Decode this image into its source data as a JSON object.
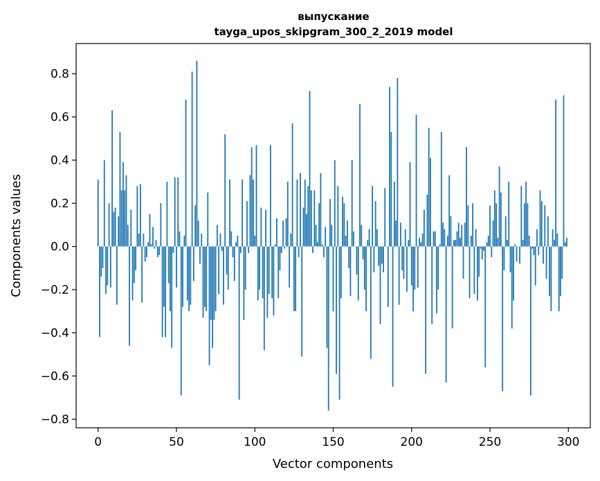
{
  "chart_data": {
    "type": "bar",
    "title": [
      "выпускание",
      "tayga_upos_skipgram_300_2_2019 model"
    ],
    "xlabel": "Vector components",
    "ylabel": "Components values",
    "xlim": [
      -14,
      314
    ],
    "ylim": [
      -0.84,
      0.94
    ],
    "xticks": [
      0,
      50,
      100,
      150,
      200,
      250,
      300
    ],
    "yticks": [
      -0.8,
      -0.6,
      -0.4,
      -0.2,
      0.0,
      0.2,
      0.4,
      0.6,
      0.8
    ],
    "ytick_labels": [
      "−0.8",
      "−0.6",
      "−0.4",
      "−0.2",
      "0.0",
      "0.2",
      "0.4",
      "0.6",
      "0.8"
    ],
    "grid": false,
    "bar_color": "#1f77b4",
    "values": [
      0.31,
      -0.42,
      -0.14,
      -0.1,
      0.4,
      -0.22,
      -0.18,
      0.2,
      -0.19,
      0.63,
      0.16,
      0.18,
      -0.27,
      0.14,
      0.53,
      0.26,
      0.39,
      0.26,
      0.33,
      0.1,
      -0.46,
      0.17,
      -0.25,
      -0.17,
      -0.11,
      0.28,
      0.06,
      0.29,
      -0.26,
      0.06,
      -0.07,
      -0.05,
      0.02,
      0.15,
      0.01,
      0.09,
      -0.01,
      0.03,
      -0.05,
      -0.04,
      0.2,
      -0.42,
      -0.28,
      -0.42,
      0.3,
      -0.17,
      -0.3,
      -0.47,
      -0.03,
      0.32,
      -0.19,
      0.32,
      0.07,
      -0.69,
      -0.28,
      0.05,
      0.68,
      -0.25,
      -0.3,
      -0.27,
      0.81,
      -0.16,
      0.19,
      0.86,
      0.12,
      -0.08,
      0.06,
      -0.33,
      -0.28,
      -0.3,
      0.25,
      -0.55,
      -0.34,
      -0.47,
      -0.34,
      -0.3,
      0.1,
      -0.22,
      0.06,
      -0.02,
      -0.27,
      0.52,
      -0.13,
      -0.2,
      0.31,
      0.07,
      -0.05,
      -0.16,
      0.02,
      0.05,
      -0.71,
      -0.03,
      0.31,
      -0.34,
      -0.2,
      0.21,
      -0.03,
      0.33,
      0.46,
      0.31,
      0.05,
      0.47,
      -0.25,
      -0.2,
      0.18,
      -0.24,
      -0.48,
      0.17,
      -0.33,
      -0.22,
      0.47,
      -0.24,
      -0.32,
      0.01,
      0.13,
      -0.24,
      -0.11,
      -0.03,
      0.12,
      -0.01,
      0.13,
      0.3,
      -0.19,
      0.06,
      0.57,
      -0.3,
      -0.3,
      0.31,
      -0.05,
      0.34,
      -0.51,
      0.18,
      0.31,
      0.15,
      0.28,
      0.72,
      0.26,
      -0.03,
      0.26,
      0.1,
      0.02,
      0.2,
      0.34,
      0.01,
      -0.05,
      0.09,
      -0.47,
      -0.76,
      0.22,
      0.1,
      -0.3,
      0.4,
      -0.59,
      0.28,
      -0.71,
      -0.24,
      0.23,
      0.2,
      0.05,
      0.12,
      -0.1,
      -0.23,
      0.4,
      0.07,
      0.0,
      -0.13,
      -0.25,
      0.66,
      0.1,
      -0.06,
      -0.2,
      -0.3,
      0.03,
      0.08,
      -0.52,
      0.28,
      -0.12,
      0.21,
      0.08,
      -0.09,
      -0.36,
      -0.08,
      -0.12,
      0.27,
      0.0,
      -0.28,
      0.74,
      0.53,
      -0.65,
      0.3,
      0.12,
      0.78,
      -0.27,
      0.11,
      -0.11,
      -0.15,
      0.08,
      -0.21,
      0.03,
      0.39,
      -0.18,
      -0.3,
      -0.2,
      0.61,
      -0.19,
      0.04,
      0.02,
      0.06,
      0.17,
      -0.59,
      0.24,
      0.55,
      0.41,
      -0.36,
      0.07,
      0.07,
      -0.31,
      -0.2,
      0.01,
      0.53,
      0.11,
      0.08,
      -0.63,
      0.05,
      0.33,
      0.14,
      -0.38,
      0.03,
      0.03,
      0.07,
      0.11,
      0.04,
      0.1,
      -0.15,
      0.11,
      0.46,
      0.19,
      -0.24,
      0.05,
      0.2,
      -0.22,
      0.08,
      -0.25,
      -0.14,
      -0.01,
      -0.06,
      -0.02,
      -0.56,
      0.02,
      0.05,
      0.19,
      -0.05,
      0.12,
      0.26,
      0.2,
      0.04,
      0.37,
      0.25,
      -0.67,
      -0.11,
      0.14,
      0.03,
      0.3,
      -0.12,
      -0.38,
      -0.25,
      0.01,
      -0.07,
      0.0,
      -0.08,
      0.28,
      0.03,
      0.2,
      0.3,
      0.2,
      0.05,
      -0.69,
      -0.01,
      -0.04,
      -0.18,
      0.08,
      -0.04,
      0.26,
      0.21,
      -0.08,
      0.19,
      -0.15,
      0.14,
      -0.23,
      -0.3,
      0.08,
      0.03,
      0.68,
      0.06,
      -0.3,
      -0.23,
      -0.15,
      0.7,
      0.02,
      0.04
    ]
  }
}
